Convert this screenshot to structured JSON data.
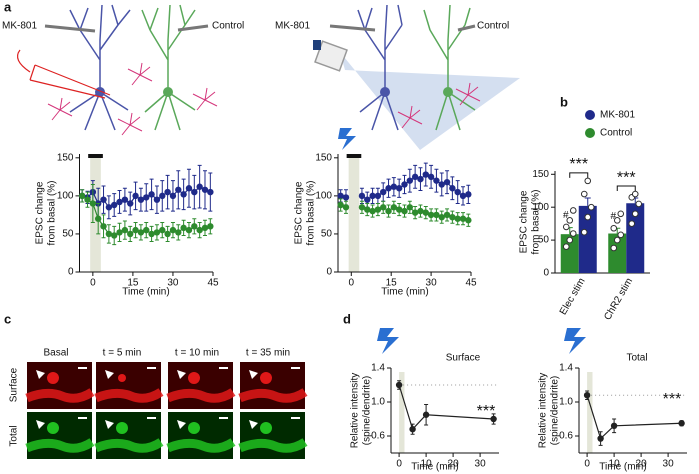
{
  "panel_labels": [
    "a",
    "b",
    "c",
    "d"
  ],
  "panel_a": {
    "left": {
      "drug_label": "MK-801",
      "control_label": "Control"
    },
    "right": {
      "drug_label": "MK-801",
      "control_label": "Control"
    }
  },
  "panel_c": {
    "columns": [
      "Basal",
      "t = 5 min",
      "t = 10 min",
      "t = 35 min"
    ],
    "rows": [
      "Surface",
      "Total"
    ]
  },
  "chart_data": [
    {
      "type": "line",
      "ylabel": [
        "EPSC change",
        "from basal (%)"
      ],
      "xlabel": "Time (min)",
      "xlim": [
        -5,
        45
      ],
      "xticks": [
        0,
        15,
        30,
        45
      ],
      "ylim": [
        0,
        155
      ],
      "yticks": [
        0,
        50,
        100,
        150
      ],
      "stim_window": [
        -1,
        3
      ],
      "stim_bar": true,
      "x": [
        -4,
        -2,
        0,
        2,
        4,
        6,
        8,
        10,
        12,
        14,
        16,
        18,
        20,
        22,
        24,
        26,
        28,
        30,
        32,
        34,
        36,
        38,
        40,
        42,
        44
      ],
      "series": [
        {
          "color": "#1f2a8a",
          "values": [
            100,
            98,
            105,
            90,
            95,
            85,
            88,
            92,
            95,
            90,
            100,
            95,
            98,
            102,
            95,
            100,
            105,
            100,
            108,
            102,
            110,
            105,
            112,
            108,
            105
          ],
          "errors": [
            8,
            8,
            15,
            20,
            18,
            15,
            15,
            15,
            15,
            15,
            18,
            15,
            18,
            20,
            18,
            20,
            22,
            20,
            25,
            20,
            25,
            22,
            28,
            25,
            25
          ]
        },
        {
          "color": "#2e8b2e",
          "values": [
            100,
            95,
            90,
            70,
            60,
            50,
            48,
            52,
            55,
            50,
            55,
            52,
            55,
            50,
            52,
            55,
            50,
            55,
            52,
            58,
            55,
            60,
            55,
            58,
            60
          ],
          "errors": [
            8,
            10,
            25,
            20,
            15,
            12,
            12,
            12,
            12,
            10,
            10,
            10,
            10,
            10,
            10,
            10,
            10,
            10,
            10,
            10,
            10,
            10,
            10,
            10,
            10
          ]
        }
      ]
    },
    {
      "type": "line",
      "ylabel": [
        "EPSC change",
        "from basal (%)"
      ],
      "xlabel": "Time (min)",
      "xlim": [
        -5,
        45
      ],
      "xticks": [
        0,
        15,
        30,
        45
      ],
      "ylim": [
        0,
        155
      ],
      "yticks": [
        0,
        50,
        100,
        150
      ],
      "stim_window": [
        -1,
        3
      ],
      "stim_bar": true,
      "x": [
        -4,
        -2,
        0,
        2,
        4,
        6,
        8,
        10,
        12,
        14,
        16,
        18,
        20,
        22,
        24,
        26,
        28,
        30,
        32,
        34,
        36,
        38,
        40,
        42,
        44
      ],
      "series": [
        {
          "color": "#1f2a8a",
          "values": [
            100,
            98,
            null,
            null,
            100,
            95,
            100,
            100,
            105,
            110,
            112,
            110,
            115,
            120,
            125,
            122,
            128,
            125,
            120,
            115,
            118,
            110,
            105,
            100,
            102
          ],
          "errors": [
            8,
            10,
            null,
            null,
            10,
            10,
            10,
            10,
            12,
            12,
            12,
            12,
            12,
            15,
            15,
            15,
            15,
            15,
            15,
            15,
            15,
            15,
            15,
            12,
            12
          ]
        },
        {
          "color": "#2e8b2e",
          "values": [
            88,
            85,
            null,
            null,
            85,
            82,
            80,
            82,
            85,
            80,
            85,
            82,
            80,
            85,
            78,
            80,
            78,
            75,
            75,
            72,
            75,
            72,
            70,
            70,
            68
          ],
          "errors": [
            8,
            8,
            null,
            null,
            8,
            8,
            8,
            8,
            8,
            8,
            8,
            8,
            8,
            8,
            8,
            8,
            8,
            8,
            8,
            8,
            8,
            8,
            8,
            8,
            8
          ]
        }
      ]
    },
    {
      "type": "bar",
      "ylabel": [
        "EPSC change",
        "from basal (%)"
      ],
      "categories": [
        "Elec stim",
        "ChR2 stim"
      ],
      "ylim": [
        0,
        155
      ],
      "yticks": [
        0,
        50,
        100,
        150
      ],
      "legend": "top",
      "significance": [
        "***",
        "***"
      ],
      "hash_marks": [
        "#",
        "#"
      ],
      "series": [
        {
          "name": "Control",
          "color": "#2e8b2e",
          "values": [
            59,
            60
          ],
          "errors": [
            10,
            8
          ],
          "points": [
            [
              40,
              50,
              60,
              70,
              80,
              95
            ],
            [
              38,
              50,
              58,
              68,
              80,
              90
            ]
          ]
        },
        {
          "name": "MK-801",
          "color": "#1f2a8a",
          "values": [
            102,
            106
          ],
          "errors": [
            12,
            8
          ],
          "points": [
            [
              62,
              85,
              100,
              120,
              140
            ],
            [
              75,
              90,
              105,
              115,
              120
            ]
          ]
        }
      ]
    },
    {
      "type": "line",
      "title": "Surface",
      "annotation": "***",
      "ylabel": [
        "Relative intensity",
        "(spine/dendrite)"
      ],
      "xlabel": "Time (min)",
      "xlim": [
        -3,
        37
      ],
      "xticks": [
        0,
        10,
        20,
        30
      ],
      "ylim": [
        0.4,
        1.4
      ],
      "yticks": [
        0.6,
        {
          "value": 1,
          "label": "1.0"
        },
        1.4
      ],
      "stim_window": [
        0,
        2
      ],
      "baseline": true,
      "x": [
        0,
        5,
        10,
        35
      ],
      "series": [
        {
          "color": "#222222",
          "values": [
            1.2,
            0.68,
            0.85,
            0.8
          ],
          "errors": [
            0.05,
            0.06,
            0.12,
            0.06
          ]
        }
      ]
    },
    {
      "type": "line",
      "title": "Total",
      "annotation": "***",
      "ylabel": [
        "Relative intensity",
        "(spine/dendrite)"
      ],
      "xlabel": "Time (min)",
      "xlim": [
        -3,
        37
      ],
      "xticks": [
        0,
        10,
        20,
        30
      ],
      "ylim": [
        0.4,
        1.4
      ],
      "yticks": [
        0.6,
        {
          "value": 1,
          "label": "1.0"
        },
        1.4
      ],
      "stim_window": [
        0,
        2
      ],
      "baseline": true,
      "x": [
        0,
        5,
        10,
        35
      ],
      "series": [
        {
          "color": "#222222",
          "values": [
            1.08,
            0.57,
            0.72,
            0.75
          ],
          "errors": [
            0.05,
            0.08,
            0.08,
            0.03
          ]
        }
      ]
    }
  ]
}
